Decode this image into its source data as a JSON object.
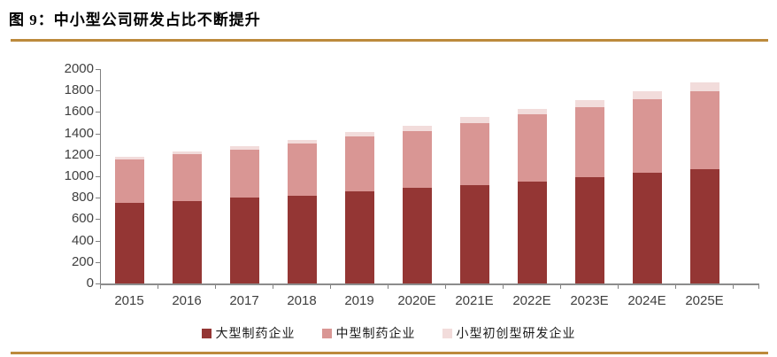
{
  "figure": {
    "title": "图 9：中小型公司研发占比不断提升",
    "rule_color": "#BC8A3C"
  },
  "chart_data": {
    "type": "bar",
    "stacked": true,
    "title": "图 9：中小型公司研发占比不断提升",
    "categories": [
      "2015",
      "2016",
      "2017",
      "2018",
      "2019",
      "2020E",
      "2021E",
      "2022E",
      "2023E",
      "2024E",
      "2025E"
    ],
    "series": [
      {
        "name": "大型制药企业",
        "color": "#943634",
        "values": [
          750,
          770,
          800,
          820,
          860,
          890,
          920,
          950,
          990,
          1030,
          1070
        ]
      },
      {
        "name": "中型制药企业",
        "color": "#D99694",
        "values": [
          410,
          435,
          450,
          485,
          510,
          535,
          580,
          625,
          655,
          690,
          725
        ]
      },
      {
        "name": "小型初创型研发企业",
        "color": "#F2DCDB",
        "values": [
          20,
          25,
          30,
          35,
          40,
          45,
          50,
          55,
          65,
          70,
          85
        ]
      }
    ],
    "stack_totals": [
      1180,
      1230,
      1280,
      1340,
      1410,
      1470,
      1550,
      1630,
      1710,
      1790,
      1880
    ],
    "ylim": [
      0,
      2000
    ],
    "ytick_step": 200,
    "ytick_labels": [
      "0",
      "200",
      "400",
      "600",
      "800",
      "1000",
      "1200",
      "1400",
      "1600",
      "1800",
      "2000"
    ],
    "xlabel": "",
    "ylabel": "",
    "grid": false,
    "legend_position": "bottom",
    "axis_color": "#808080",
    "tick_label_color": "#3f3f3f"
  }
}
